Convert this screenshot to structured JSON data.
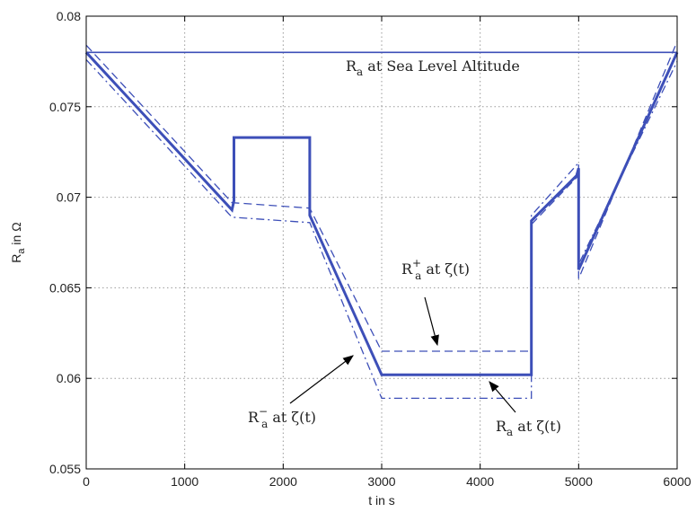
{
  "chart_data": {
    "type": "line",
    "xlabel": "t in s",
    "ylabel": "R_a in Ω",
    "xlim": [
      0,
      6000
    ],
    "ylim": [
      0.055,
      0.08
    ],
    "xticks": [
      "0",
      "1000",
      "2000",
      "3000",
      "4000",
      "5000",
      "6000"
    ],
    "yticks": [
      "0.055",
      "0.06",
      "0.065",
      "0.07",
      "0.075",
      "0.08"
    ],
    "grid": true,
    "colors": {
      "series": "#3d4fb8",
      "axes": "#000000",
      "grid": "#9a9a9a"
    },
    "series": [
      {
        "name": "Ra at Sea Level Altitude",
        "style": "solid-thin",
        "x": [
          0,
          6000
        ],
        "y": [
          0.078,
          0.078
        ]
      },
      {
        "name": "Ra at ζ(t)",
        "style": "solid-thick",
        "x": [
          0,
          1480,
          1480,
          1500,
          1500,
          1550,
          2270,
          2270,
          3000,
          3000,
          4520,
          4520,
          4980,
          5000,
          5000,
          6000
        ],
        "y": [
          0.078,
          0.0693,
          0.0693,
          0.0698,
          0.0733,
          0.0733,
          0.0733,
          0.069,
          0.0602,
          0.0602,
          0.0602,
          0.0687,
          0.0712,
          0.0716,
          0.066,
          0.078
        ]
      },
      {
        "name": "R+a at ζ(t)",
        "style": "dashed",
        "x": [
          0,
          1480,
          2270,
          3000,
          3000,
          4520,
          4520,
          5000,
          5000,
          6000
        ],
        "y": [
          0.0784,
          0.0697,
          0.0694,
          0.0615,
          0.0615,
          0.0615,
          0.0685,
          0.0712,
          0.0655,
          0.0786
        ]
      },
      {
        "name": "R−a at ζ(t)",
        "style": "dashdot",
        "x": [
          0,
          1480,
          2270,
          3000,
          3000,
          4520,
          4520,
          5000,
          5000,
          6000
        ],
        "y": [
          0.0776,
          0.0689,
          0.0686,
          0.0589,
          0.0589,
          0.0589,
          0.069,
          0.0719,
          0.0663,
          0.0775
        ]
      }
    ],
    "annotations": [
      {
        "id": "sea",
        "base": "R",
        "sub": "a",
        "sup": "",
        "text": " at Sea Level Altitude"
      },
      {
        "id": "plus",
        "base": "R",
        "sub": "a",
        "sup": "+",
        "text": " at ζ(t)"
      },
      {
        "id": "minus",
        "base": "R",
        "sub": "a",
        "sup": "−",
        "text": " at ζ(t)"
      },
      {
        "id": "nominal",
        "base": "R",
        "sub": "a",
        "sup": "",
        "text": " at ζ(t)"
      }
    ]
  }
}
